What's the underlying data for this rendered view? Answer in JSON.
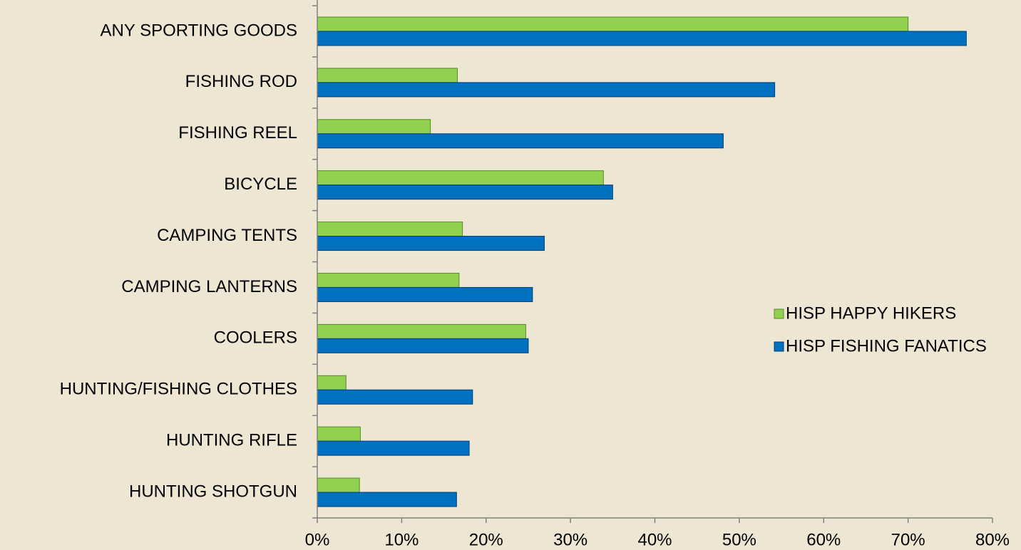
{
  "chart_data": {
    "type": "bar",
    "orientation": "horizontal",
    "categories": [
      "ANY SPORTING GOODS",
      "FISHING ROD",
      "FISHING REEL",
      "BICYCLE",
      "CAMPING TENTS",
      "CAMPING LANTERNS",
      "COOLERS",
      "HUNTING/FISHING CLOTHES",
      "HUNTING RIFLE",
      "HUNTING SHOTGUN"
    ],
    "series": [
      {
        "name": "HISP HAPPY HIKERS",
        "color": "#92d050",
        "values": [
          70.0,
          16.6,
          13.4,
          33.9,
          17.2,
          16.8,
          24.7,
          3.4,
          5.1,
          5.0
        ]
      },
      {
        "name": "HISP FISHING FANATICS",
        "color": "#0070c0",
        "values": [
          76.9,
          54.2,
          48.1,
          35.0,
          26.9,
          25.5,
          25.0,
          18.4,
          18.0,
          16.5
        ]
      }
    ],
    "xlim": [
      0,
      80
    ],
    "xticks": [
      {
        "value": 0,
        "label": "0%"
      },
      {
        "value": 10,
        "label": "10%"
      },
      {
        "value": 20,
        "label": "20%"
      },
      {
        "value": 30,
        "label": "30%"
      },
      {
        "value": 40,
        "label": "40%"
      },
      {
        "value": 50,
        "label": "50%"
      },
      {
        "value": 60,
        "label": "60%"
      },
      {
        "value": 70,
        "label": "70%"
      },
      {
        "value": 80,
        "label": "80%"
      }
    ],
    "legend": "right"
  }
}
